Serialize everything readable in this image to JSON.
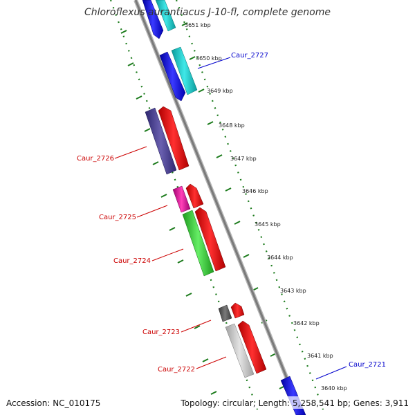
{
  "title": "Chloroflexus aurantiacus J-10-fl, complete genome",
  "footer": {
    "accession": "Accession: NC_010175",
    "summary": "Topology: circular; Length: 5,258,541 bp; Genes: 3,911"
  },
  "kbp_marks": [
    "3651 kbp",
    "3650 kbp",
    "3649 kbp",
    "3648 kbp",
    "3647 kbp",
    "3646 kbp",
    "3645 kbp",
    "3644 kbp",
    "3643 kbp",
    "3642 kbp",
    "3641 kbp",
    "3640 kbp"
  ],
  "gene_labels": {
    "right": [
      {
        "text": "Caur_2727",
        "color": "#0000cc"
      },
      {
        "text": "Caur_2721",
        "color": "#0000cc"
      }
    ],
    "left": [
      {
        "text": "Caur_2726",
        "color": "#cc0000"
      },
      {
        "text": "Caur_2725",
        "color": "#cc0000"
      },
      {
        "text": "Caur_2724",
        "color": "#cc0000"
      },
      {
        "text": "Caur_2723",
        "color": "#cc0000"
      },
      {
        "text": "Caur_2722",
        "color": "#cc0000"
      }
    ]
  },
  "colors": {
    "backbone": "#8a8a8a",
    "tick_green": "#1a7a1a",
    "blue": "#1010e0",
    "cyan": "#16c8c8",
    "purple": "#4a3f8c",
    "red": "#ee0000",
    "magenta": "#e0189a",
    "green": "#33cc33",
    "dark_gray": "#555555",
    "light_gray": "#c4c4c4"
  }
}
